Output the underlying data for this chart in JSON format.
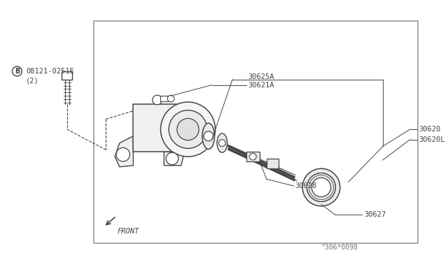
{
  "bg_color": "#ffffff",
  "border_color": "#999999",
  "line_color": "#444444",
  "border": [
    0.215,
    0.07,
    0.955,
    0.945
  ],
  "labels": {
    "part_number": "08121-0251E",
    "qty": "(2)",
    "b_circle": "B",
    "l1": "30621A",
    "l2": "30625A",
    "l3": "30620",
    "l4": "30620L",
    "l5": "30628",
    "l6": "30627",
    "front": "FRONT",
    "catalog": "^306*0098"
  }
}
